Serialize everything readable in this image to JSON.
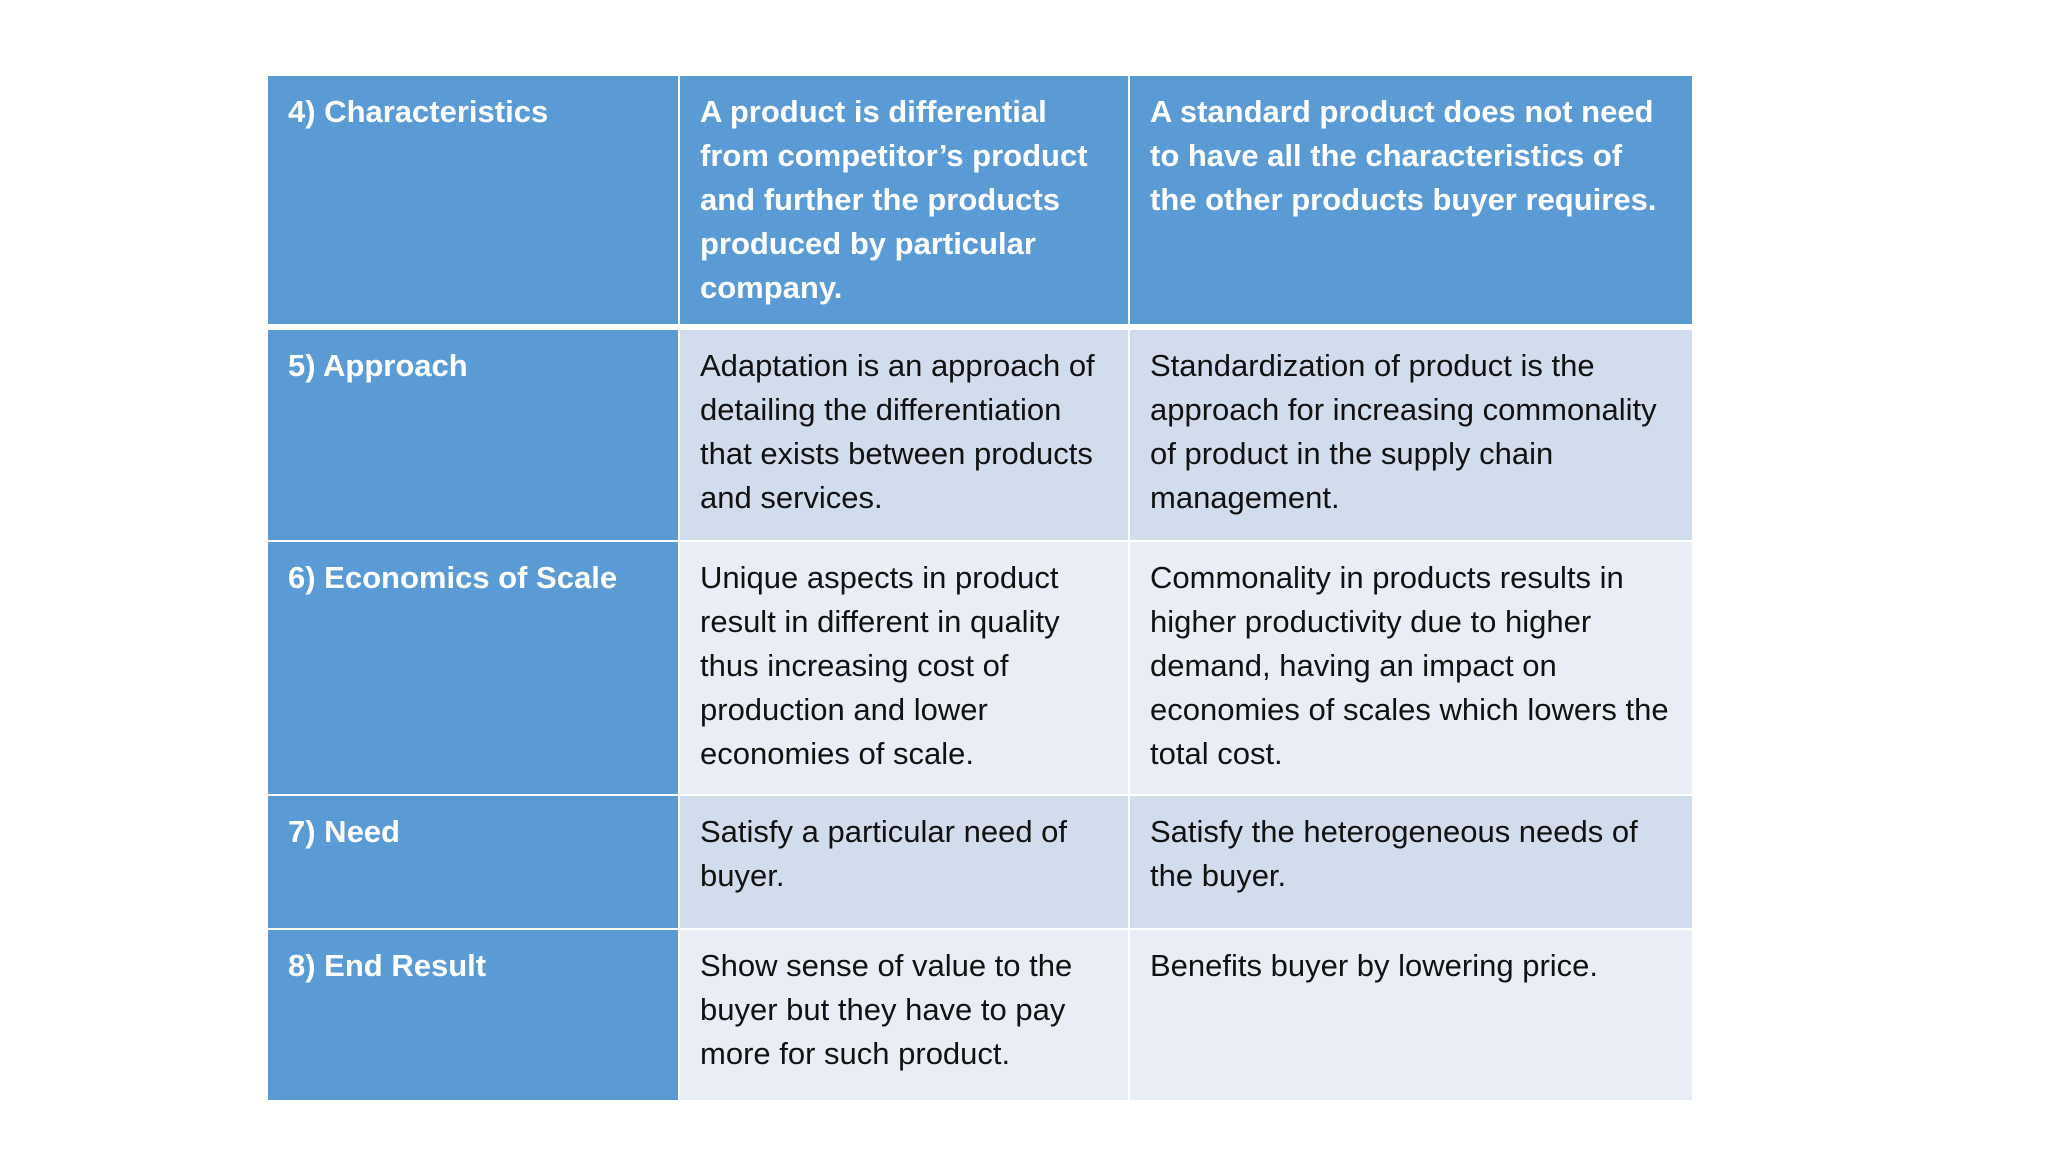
{
  "table": {
    "rows": [
      {
        "label": "4) Characteristics",
        "col_a": "A product is differential from competitor’s product and further the products produced by particular company.",
        "col_b": "A standard product does not need to have all the characteristics of the other products buyer requires."
      },
      {
        "label": "5) Approach",
        "col_a": "Adaptation is an approach of detailing the differentiation that exists between products and services.",
        "col_b": "Standardization of product is the approach for increasing commonality of product in the supply chain management."
      },
      {
        "label": "6) Economics of Scale",
        "col_a": "Unique aspects in product result in different in quality thus increasing cost of production and lower economies of scale.",
        "col_b": "Commonality in products results in higher productivity due to higher demand, having an impact on economies of scales which lowers the total cost."
      },
      {
        "label": "7) Need",
        "col_a": "Satisfy a particular need of buyer.",
        "col_b": "Satisfy the heterogeneous needs of the buyer."
      },
      {
        "label": "8) End Result",
        "col_a": "Show sense of value to the buyer but they have to pay more for such product.",
        "col_b": "Benefits buyer by lowering price."
      }
    ]
  },
  "colors": {
    "header_blue": "#5b9bd5",
    "band_dark": "#d1dcec",
    "band_light": "#e9eef6"
  }
}
